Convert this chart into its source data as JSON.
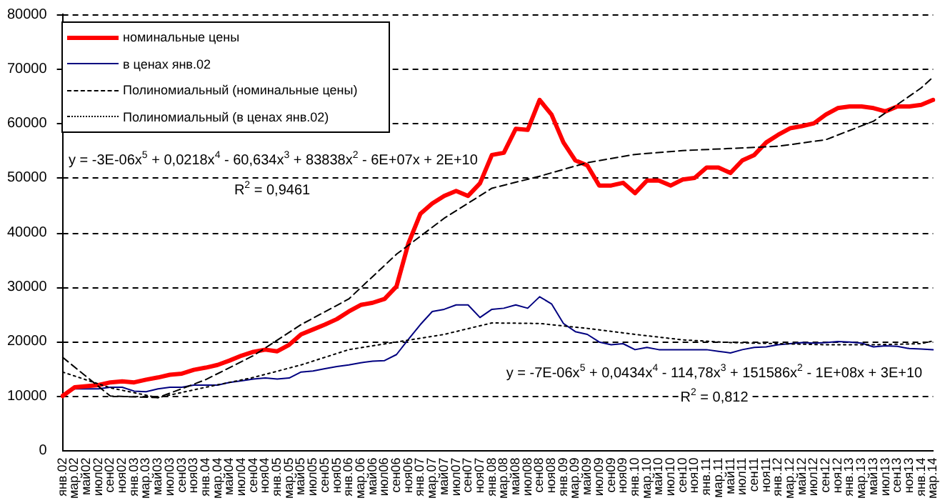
{
  "chart_data": {
    "type": "line",
    "categories": [
      "янв.02",
      "мар.02",
      "май02",
      "июл02",
      "сен02",
      "ноя02",
      "янв.03",
      "мар.03",
      "май03",
      "июл03",
      "сен03",
      "ноя03",
      "янв.04",
      "мар.04",
      "май04",
      "июл04",
      "сен04",
      "ноя04",
      "янв.05",
      "мар.05",
      "май05",
      "июл05",
      "сен05",
      "ноя05",
      "янв.06",
      "мар.06",
      "май06",
      "июл06",
      "сен06",
      "ноя06",
      "янв.07",
      "мар.07",
      "май07",
      "июл07",
      "сен07",
      "ноя07",
      "янв.08",
      "мар.08",
      "май08",
      "июл08",
      "сен08",
      "ноя08",
      "янв.09",
      "мар.09",
      "май09",
      "июл09",
      "сен09",
      "ноя09",
      "янв.10",
      "мар.10",
      "май10",
      "июл10",
      "сен10",
      "ноя10",
      "янв.11",
      "мар.11",
      "май11",
      "июл11",
      "сен11",
      "ноя11",
      "янв.12",
      "мар.12",
      "май12",
      "июл12",
      "сен12",
      "ноя12",
      "янв.13",
      "мар.13",
      "май13",
      "июл13",
      "сен13",
      "ноя13",
      "янв.14",
      "мар.14"
    ],
    "series": [
      {
        "name": "номинальные цены",
        "color": "#ff0000",
        "line_style": "solid",
        "values": [
          10000,
          11600,
          11800,
          12000,
          12500,
          12700,
          12500,
          13000,
          13400,
          13900,
          14100,
          14800,
          15200,
          15700,
          16500,
          17400,
          18100,
          18500,
          18200,
          19400,
          21300,
          22200,
          23100,
          24100,
          25500,
          26700,
          27100,
          27800,
          30100,
          38000,
          43400,
          45300,
          46700,
          47600,
          46700,
          49000,
          54200,
          54600,
          59000,
          58800,
          64300,
          61600,
          56500,
          53200,
          52300,
          48600,
          48600,
          49100,
          47200,
          49500,
          49500,
          48600,
          49700,
          50000,
          51900,
          51900,
          50900,
          53200,
          54200,
          56500,
          57900,
          59100,
          59500,
          60000,
          61600,
          62800,
          63100,
          63100,
          62800,
          62200,
          63100,
          63100,
          63400,
          64300
        ]
      },
      {
        "name": "в ценах янв.02",
        "color": "#000080",
        "line_style": "solid",
        "values": [
          10000,
          11300,
          11300,
          11300,
          11600,
          11600,
          10900,
          10800,
          11300,
          11600,
          11600,
          12000,
          12000,
          12000,
          12500,
          12800,
          13100,
          13300,
          13100,
          13300,
          14400,
          14600,
          15000,
          15400,
          15700,
          16100,
          16400,
          16500,
          17600,
          20400,
          23100,
          25500,
          25900,
          26700,
          26700,
          24400,
          25900,
          26100,
          26700,
          26100,
          28200,
          26900,
          23300,
          21800,
          21300,
          19900,
          19400,
          19600,
          18500,
          18900,
          18500,
          18500,
          18500,
          18500,
          18500,
          18200,
          17900,
          18500,
          18900,
          19000,
          19400,
          19600,
          19800,
          19700,
          19800,
          20000,
          19900,
          19700,
          19000,
          19200,
          19100,
          18700,
          18600,
          18500
        ]
      },
      {
        "name": "Полиномиальный (номинальные цены)",
        "color": "#000000",
        "line_style": "dashed",
        "x": [
          "янв.02",
          "сен02",
          "май03",
          "янв.04",
          "сен04",
          "май05",
          "янв.06",
          "сен06",
          "май07",
          "янв.08",
          "сен08",
          "май09",
          "янв.10",
          "сен10",
          "май11",
          "янв.12",
          "сен12",
          "май13",
          "янв.14",
          "мар.14"
        ],
        "values": [
          17100,
          10000,
          9700,
          13000,
          17400,
          23100,
          27800,
          36000,
          42600,
          48100,
          50300,
          52800,
          54300,
          55000,
          55400,
          55800,
          57000,
          60400,
          66500,
          68500
        ]
      },
      {
        "name": "Полиномиальный (в ценах янв.02)",
        "color": "#000000",
        "line_style": "dotted",
        "x": [
          "янв.02",
          "сен02",
          "май03",
          "янв.04",
          "сен04",
          "май05",
          "янв.06",
          "сен06",
          "май07",
          "янв.08",
          "сен08",
          "май09",
          "янв.10",
          "сен10",
          "май11",
          "янв.12",
          "сен12",
          "май13",
          "янв.14",
          "мар.14"
        ],
        "values": [
          14400,
          11500,
          9700,
          11600,
          13400,
          15700,
          18500,
          19900,
          21300,
          23400,
          23300,
          22400,
          21300,
          20300,
          19800,
          19600,
          19400,
          19400,
          19600,
          20100
        ]
      }
    ],
    "ylim": [
      0,
      80000
    ],
    "yticks": [
      0,
      10000,
      20000,
      30000,
      40000,
      50000,
      60000,
      70000,
      80000
    ],
    "grid": "y",
    "legend": "top left",
    "marker": "none",
    "annotations": [
      "y = -3E-06x$^{5}$ + 0,0218x$^{4}$ - 60,634x$^{3}$ + 83838x$^{2}$ - 6E+07x + 2E+10",
      "R$^{2}$ = 0,9461",
      "y = -7E-06x$^{5}$ + 0,0434x$^{4}$ - 114,78x$^{3}$ + 151586x$^{2}$ - 1E+08x + 3E+10",
      "R$^{2}$ = 0,812"
    ]
  }
}
